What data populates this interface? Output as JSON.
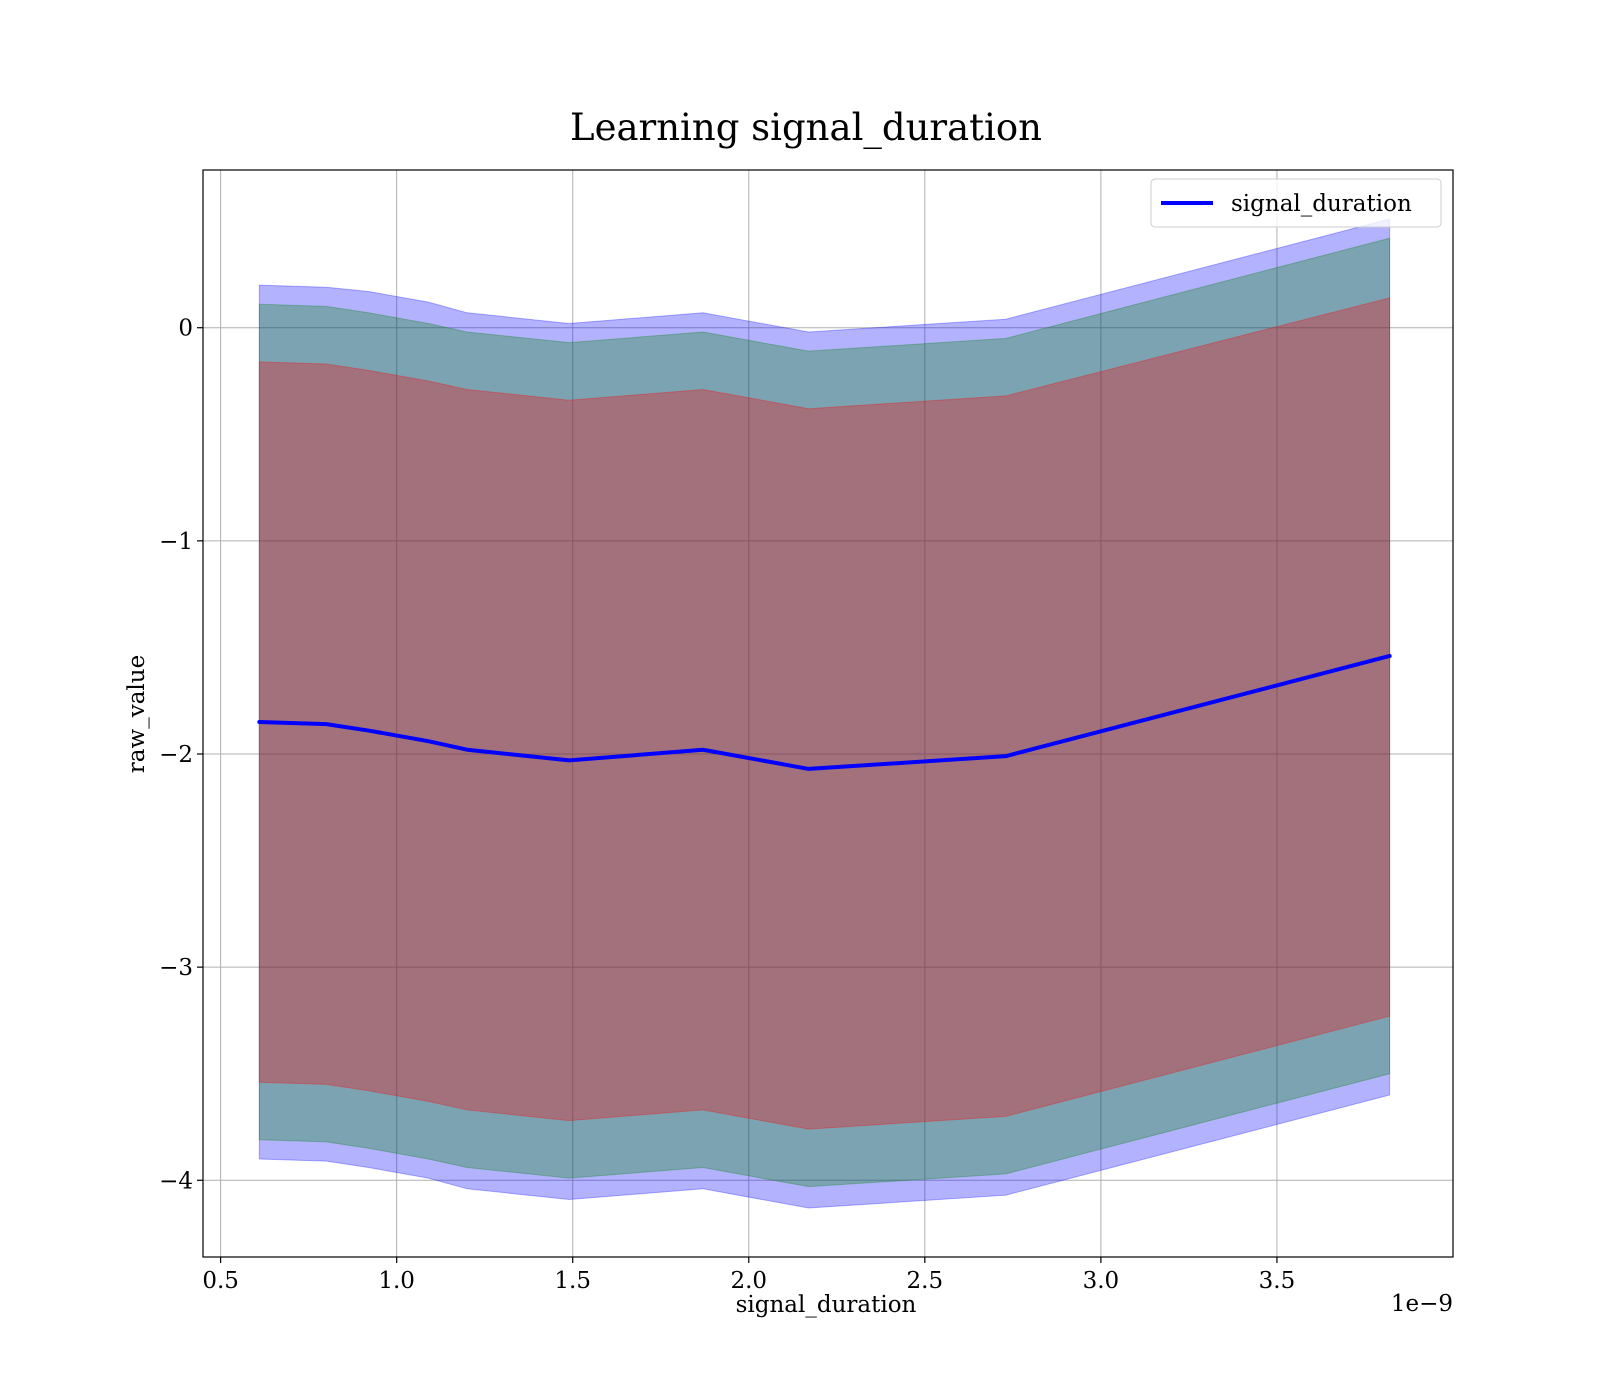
{
  "chart_data": {
    "type": "line",
    "title": "Learning signal_duration",
    "xlabel": "signal_duration",
    "ylabel": "raw_value",
    "x_offset_label": "1e−9",
    "xlim": [
      0.45,
      4.0
    ],
    "ylim": [
      -4.36,
      0.74
    ],
    "xticks": [
      0.5,
      1.0,
      1.5,
      2.0,
      2.5,
      3.0,
      3.5
    ],
    "xtick_labels": [
      "0.5",
      "1.0",
      "1.5",
      "2.0",
      "2.5",
      "3.0",
      "3.5"
    ],
    "yticks": [
      0,
      -1,
      -2,
      -3,
      -4
    ],
    "ytick_labels": [
      "0",
      "−1",
      "−2",
      "−3",
      "−4"
    ],
    "grid": true,
    "legend": {
      "location": "upper right",
      "entries": [
        "signal_duration"
      ]
    },
    "x": [
      0.61,
      0.8,
      0.92,
      1.09,
      1.2,
      1.49,
      1.87,
      2.17,
      2.73,
      3.82
    ],
    "series": [
      {
        "name": "signal_duration",
        "color": "#0000ff",
        "values": [
          -1.85,
          -1.86,
          -1.89,
          -1.94,
          -1.98,
          -2.03,
          -1.98,
          -2.07,
          -2.01,
          -1.54
        ]
      }
    ],
    "bands": [
      {
        "role": "outer",
        "color": "#0000ff",
        "upper": [
          0.2,
          0.19,
          0.17,
          0.12,
          0.07,
          0.02,
          0.07,
          -0.02,
          0.04,
          0.51
        ],
        "lower": [
          -3.9,
          -3.91,
          -3.94,
          -3.99,
          -4.04,
          -4.09,
          -4.04,
          -4.13,
          -4.07,
          -3.6
        ]
      },
      {
        "role": "middle",
        "color": "#008000",
        "upper": [
          0.11,
          0.1,
          0.07,
          0.02,
          -0.02,
          -0.07,
          -0.02,
          -0.11,
          -0.05,
          0.42
        ],
        "lower": [
          -3.81,
          -3.82,
          -3.85,
          -3.9,
          -3.94,
          -3.99,
          -3.94,
          -4.03,
          -3.97,
          -3.5
        ]
      },
      {
        "role": "inner",
        "color": "#ff0000",
        "upper": [
          -0.16,
          -0.17,
          -0.2,
          -0.25,
          -0.29,
          -0.34,
          -0.29,
          -0.38,
          -0.32,
          0.14
        ],
        "lower": [
          -3.54,
          -3.55,
          -3.58,
          -3.63,
          -3.67,
          -3.72,
          -3.67,
          -3.76,
          -3.7,
          -3.23
        ]
      }
    ]
  }
}
